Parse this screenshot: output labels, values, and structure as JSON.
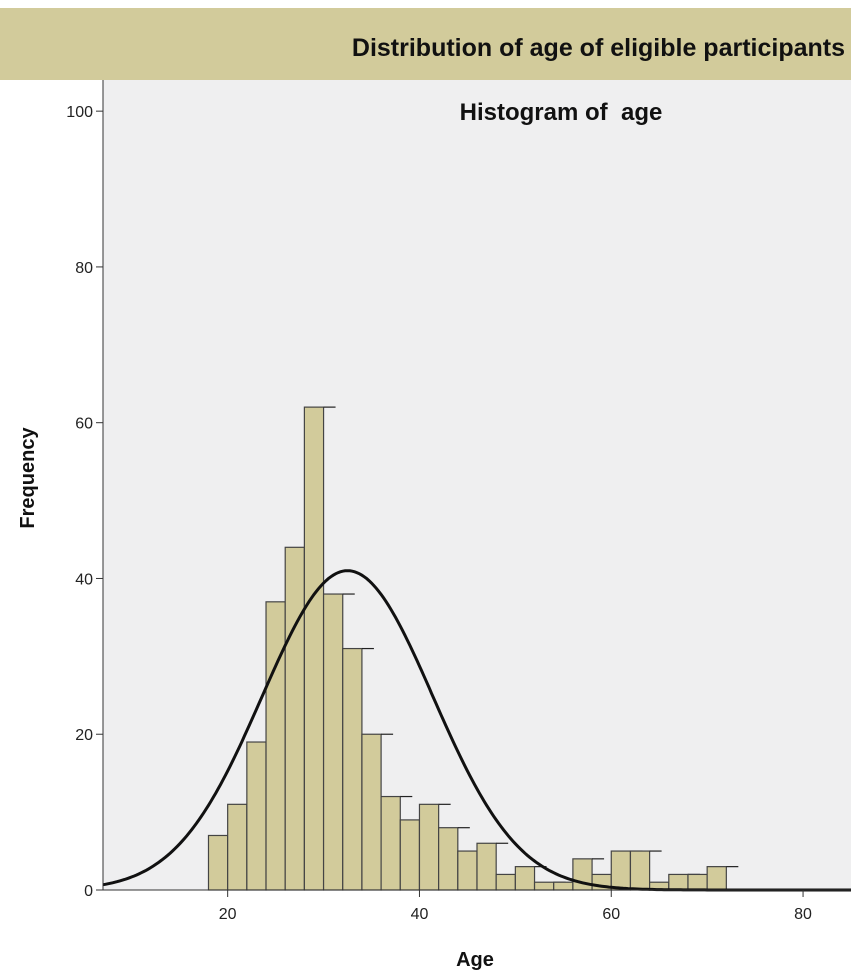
{
  "header": {
    "title": "Distribution of age of eligible participants"
  },
  "colors": {
    "bar_fill": "#d2cb9b",
    "bar_stroke": "#444444",
    "plot_bg": "#efeff0",
    "curve": "#111111",
    "banner": "#d2cb9b"
  },
  "chart_data": {
    "type": "bar",
    "title": "Histogram of  age",
    "xlabel": "Age",
    "ylabel": "Frequency",
    "xlim": [
      7,
      85
    ],
    "ylim": [
      0,
      104
    ],
    "xticks": [
      20,
      40,
      60,
      80
    ],
    "yticks": [
      0,
      20,
      40,
      60,
      80,
      100
    ],
    "grid": false,
    "bin_width": 2,
    "series": [
      {
        "bins": [
          {
            "x0": 18,
            "x1": 20,
            "count": 7
          },
          {
            "x0": 20,
            "x1": 22,
            "count": 11
          },
          {
            "x0": 22,
            "x1": 24,
            "count": 19
          },
          {
            "x0": 24,
            "x1": 26,
            "count": 37
          },
          {
            "x0": 26,
            "x1": 28,
            "count": 44
          },
          {
            "x0": 28,
            "x1": 30,
            "count": 62
          },
          {
            "x0": 30,
            "x1": 32,
            "count": 38
          },
          {
            "x0": 32,
            "x1": 34,
            "count": 31
          },
          {
            "x0": 34,
            "x1": 36,
            "count": 20
          },
          {
            "x0": 36,
            "x1": 38,
            "count": 12
          },
          {
            "x0": 38,
            "x1": 40,
            "count": 9
          },
          {
            "x0": 40,
            "x1": 42,
            "count": 11
          },
          {
            "x0": 42,
            "x1": 44,
            "count": 8
          },
          {
            "x0": 44,
            "x1": 46,
            "count": 5
          },
          {
            "x0": 46,
            "x1": 48,
            "count": 6
          },
          {
            "x0": 48,
            "x1": 50,
            "count": 2
          },
          {
            "x0": 50,
            "x1": 52,
            "count": 3
          },
          {
            "x0": 52,
            "x1": 54,
            "count": 1
          },
          {
            "x0": 54,
            "x1": 56,
            "count": 1
          },
          {
            "x0": 56,
            "x1": 58,
            "count": 4
          },
          {
            "x0": 58,
            "x1": 60,
            "count": 2
          },
          {
            "x0": 60,
            "x1": 62,
            "count": 5
          },
          {
            "x0": 62,
            "x1": 64,
            "count": 5
          },
          {
            "x0": 64,
            "x1": 66,
            "count": 1
          },
          {
            "x0": 66,
            "x1": 68,
            "count": 2
          },
          {
            "x0": 68,
            "x1": 70,
            "count": 2
          },
          {
            "x0": 70,
            "x1": 72,
            "count": 3
          }
        ]
      }
    ],
    "normal_curve": {
      "mean": 32.5,
      "peak": 41
    }
  }
}
